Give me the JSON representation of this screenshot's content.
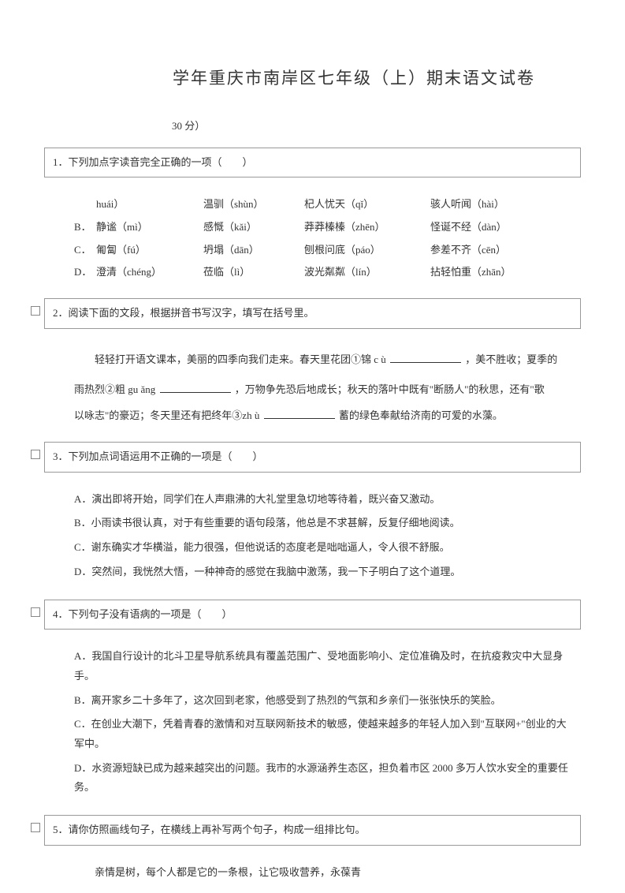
{
  "title": "学年重庆市南岸区七年级（上）期末语文试卷",
  "subtitle": "30 分）",
  "q1": {
    "stem": "1．下列加点字读音完全正确的一项（　　）",
    "rows": [
      {
        "label": "",
        "c1": "huái）",
        "c2": "温驯（shùn）",
        "c3": "杞人忧天（qǐ）",
        "c4": "骇人听闻（hài）"
      },
      {
        "label": "B．",
        "c1": "静谧（mì）",
        "c2": "感慨（kǎi）",
        "c3": "莽莽榛榛（zhēn）",
        "c4": "怪诞不经（dàn）"
      },
      {
        "label": "C．",
        "c1": "匍匐（fú）",
        "c2": "坍塌（dān）",
        "c3": "刨根问底（páo）",
        "c4": "参差不齐（cēn）"
      },
      {
        "label": "D．",
        "c1": "澄清（chéng）",
        "c2": "莅临（lì）",
        "c3": "波光粼粼（lín）",
        "c4": "拈轻怕重（zhān）"
      }
    ]
  },
  "q2": {
    "stem": "2．阅读下面的文段，根据拼音书写汉字，填写在括号里。",
    "p1a": "轻轻打开语文课本，美丽的四季向我们走来。春天里花团①锦 c ù",
    "p1b": "，美不胜收；夏季的",
    "p2a": "雨热烈②粗 gu ǎng",
    "p2b": "，万物争先恐后地成长；秋天的落叶中既有\"断肠人\"的秋思，还有\"歌",
    "p3a": "以咏志\"的豪迈；冬天里还有把终年③zh ù",
    "p3b": "蓄的绿色奉献给济南的可爱的水藻。"
  },
  "q3": {
    "stem": "3．下列加点词语运用不正确的一项是（　　）",
    "opts": [
      "A．演出即将开始，同学们在人声鼎沸的大礼堂里急切地等待着，既兴奋又激动。",
      "B．小雨读书很认真，对于有些重要的语句段落，他总是不求甚解，反复仔细地阅读。",
      "C．谢东确实才华横溢，能力很强，但他说话的态度老是咄咄逼人，令人很不舒服。",
      "D．突然间，我恍然大悟，一种神奇的感觉在我脑中激荡，我一下子明白了这个道理。"
    ]
  },
  "q4": {
    "stem": "4．下列句子没有语病的一项是（　　）",
    "opts": [
      "A．我国自行设计的北斗卫星导航系统具有覆盖范围广、受地面影响小、定位准确及时，在抗疫救灾中大显身手。",
      "B．离开家乡二十多年了，这次回到老家，他感受到了热烈的气氛和乡亲们一张张快乐的笑脸。",
      "C．在创业大潮下，凭着青春的激情和对互联网新技术的敏感，使越来越多的年轻人加入到\"互联网+\"创业的大军中。",
      "D．水资源短缺已成为越来越突出的问题。我市的水源涵养生态区，担负着市区 2000 多万人饮水安全的重要任务。"
    ]
  },
  "q5": {
    "stem": "5．请你仿照画线句子，在横线上再补写两个句子，构成一组排比句。",
    "p1": "亲情是树，每个人都是它的一条根，让它吸收营养，永葆青"
  }
}
